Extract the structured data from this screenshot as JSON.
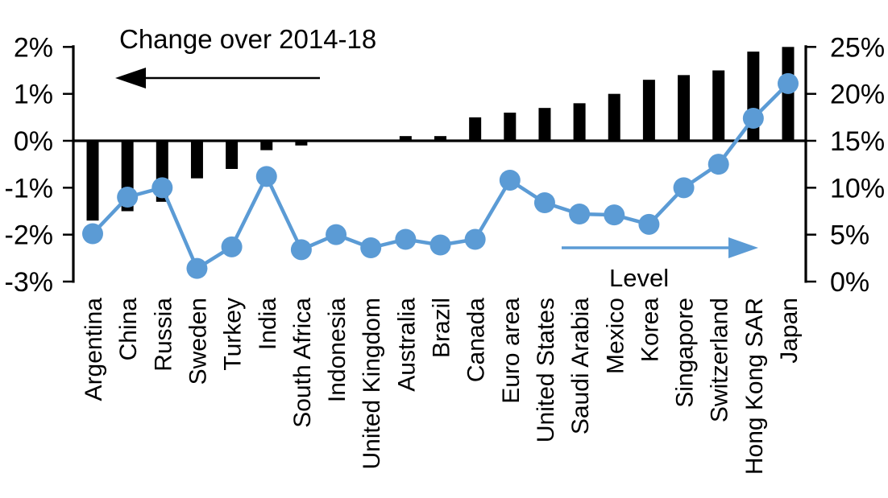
{
  "chart_data": {
    "type": "combo_bar_line",
    "categories": [
      "Argentina",
      "China",
      "Russia",
      "Sweden",
      "Turkey",
      "India",
      "South Africa",
      "Indonesia",
      "United Kingdom",
      "Australia",
      "Brazil",
      "Canada",
      "Euro area",
      "United States",
      "Saudi Arabia",
      "Mexico",
      "Korea",
      "Singapore",
      "Switzerland",
      "Hong Kong SAR",
      "Japan"
    ],
    "series": [
      {
        "name": "Change over 2014-18",
        "type": "bar",
        "axis": "left",
        "color": "#000000",
        "values": [
          -1.7,
          -1.5,
          -1.3,
          -0.8,
          -0.6,
          -0.2,
          -0.1,
          0.0,
          0.0,
          0.1,
          0.1,
          0.5,
          0.6,
          0.7,
          0.8,
          1.0,
          1.3,
          1.4,
          1.5,
          1.9,
          2.0
        ]
      },
      {
        "name": "Level",
        "type": "line",
        "axis": "right",
        "color": "#5B9BD5",
        "values": [
          5.1,
          9.0,
          10.0,
          1.4,
          3.7,
          11.2,
          3.4,
          5.0,
          3.6,
          4.5,
          3.9,
          4.5,
          10.8,
          8.4,
          7.2,
          7.1,
          6.1,
          10.0,
          12.5,
          17.4,
          21.1
        ]
      }
    ],
    "left_axis": {
      "min": -3,
      "max": 2,
      "tick_labels": [
        "2%",
        "1%",
        "0%",
        "-1%",
        "-2%",
        "-3%"
      ],
      "tick_values": [
        2,
        1,
        0,
        -1,
        -2,
        -3
      ]
    },
    "right_axis": {
      "min": 0,
      "max": 25,
      "tick_labels": [
        "25%",
        "20%",
        "15%",
        "10%",
        "5%",
        "0%"
      ],
      "tick_values": [
        25,
        20,
        15,
        10,
        5,
        0
      ]
    },
    "grid": false,
    "legend_position": "none",
    "annotations": [
      {
        "id": "bar_series_label",
        "text": "Change over 2014-18",
        "arrow": "left",
        "color": "#000000"
      },
      {
        "id": "line_series_label",
        "text": "Level",
        "arrow": "right",
        "color": "#5B9BD5"
      }
    ]
  },
  "colors": {
    "bar": "#000000",
    "line": "#5B9BD5",
    "text": "#000000",
    "background": "#FFFFFF"
  }
}
